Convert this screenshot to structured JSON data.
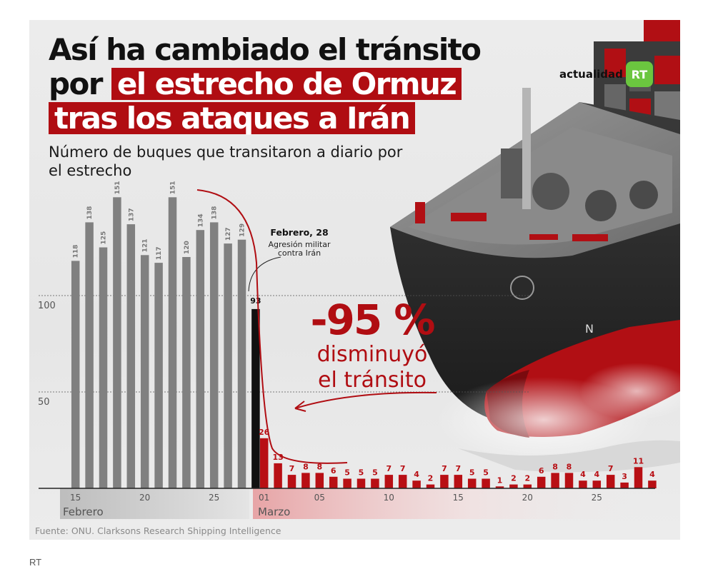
{
  "title": {
    "line1": "Así ha cambiado el tránsito",
    "line2_plain": "por",
    "line2_highlight": "el estrecho de Ormuz",
    "line3_highlight": "tras los ataques a Irán"
  },
  "subtitle": "Número de buques que transitaron a diario por el estrecho",
  "logo": {
    "text": "actualidad",
    "badge": "RT"
  },
  "annotation": {
    "date": "Febrero, 28",
    "line1": "Agresión militar",
    "line2": "contra Irán"
  },
  "callout": {
    "percent": "-95 %",
    "line1": "disminuyó",
    "line2": "el tránsito"
  },
  "source": "Fuente: ONU. Clarksons Research Shipping Intelligence",
  "caption": "RT",
  "colors": {
    "feb": "#808080",
    "highlight": "#111111",
    "mar": "#b80f14",
    "accent": "#b00d12",
    "logo": "#6bc63f"
  },
  "chart_data": {
    "type": "bar",
    "title": "Número de buques que transitaron a diario por el estrecho",
    "ylim": [
      0,
      155
    ],
    "yticks": [
      50,
      100
    ],
    "grid": "dashed at 50 and 100",
    "series": [
      {
        "name": "Febrero",
        "x": [
          15,
          16,
          17,
          18,
          19,
          20,
          21,
          22,
          23,
          24,
          25,
          26,
          27,
          28
        ],
        "values": [
          118,
          138,
          125,
          151,
          137,
          121,
          117,
          151,
          120,
          134,
          138,
          127,
          129,
          93
        ],
        "highlight_last": true
      },
      {
        "name": "Marzo",
        "x": [
          1,
          2,
          3,
          4,
          5,
          6,
          7,
          8,
          9,
          10,
          11,
          12,
          13,
          14,
          15,
          16,
          17,
          18,
          19,
          20,
          21,
          22,
          23,
          24,
          25,
          26,
          27,
          28,
          29
        ],
        "values": [
          26,
          13,
          7,
          8,
          8,
          6,
          5,
          5,
          5,
          7,
          7,
          4,
          2,
          7,
          7,
          5,
          5,
          1,
          2,
          2,
          6,
          8,
          8,
          4,
          4,
          7,
          3,
          11,
          4
        ]
      }
    ],
    "xticks_feb": [
      "15",
      "20",
      "25"
    ],
    "xticks_mar": [
      "01",
      "05",
      "10",
      "15",
      "20",
      "25"
    ],
    "month_labels": [
      "Febrero",
      "Marzo"
    ]
  }
}
